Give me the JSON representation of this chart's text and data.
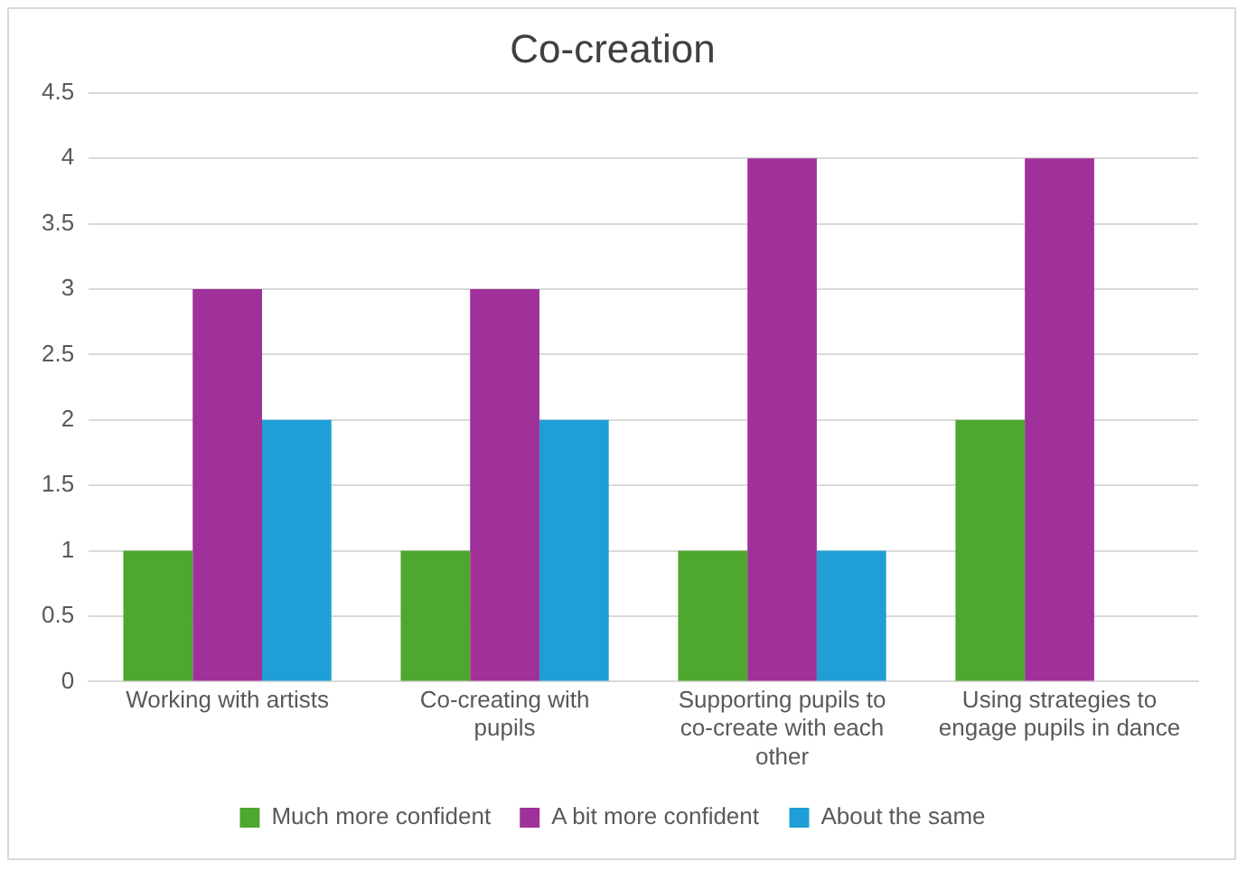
{
  "chart_data": {
    "type": "bar",
    "title": "Co-creation",
    "categories": [
      "Working with artists",
      "Co-creating with pupils",
      "Supporting pupils to co-create with each other",
      "Using strategies to engage pupils in dance"
    ],
    "series": [
      {
        "name": "Much more confident",
        "color": "#4ea72e",
        "values": [
          1,
          1,
          1,
          2
        ]
      },
      {
        "name": "A bit more confident",
        "color": "#a0309a",
        "values": [
          3,
          3,
          4,
          4
        ]
      },
      {
        "name": "About the same",
        "color": "#1f9fd5",
        "values": [
          2,
          2,
          1,
          0
        ]
      }
    ],
    "ylim": [
      0,
      4.5
    ],
    "yticks": [
      0,
      0.5,
      1,
      1.5,
      2,
      2.5,
      3,
      3.5,
      4,
      4.5
    ],
    "grid": "y",
    "legend": "bottom"
  }
}
